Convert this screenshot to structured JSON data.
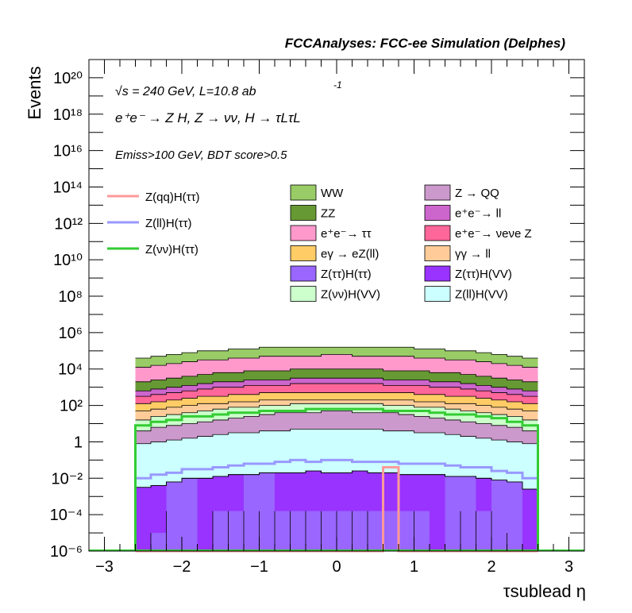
{
  "header": {
    "title": "FCCAnalyses: FCC-ee Simulation (Delphes)"
  },
  "annotations": {
    "sqrt_s": "s = 240 GeV, L=10.8 ab",
    "lumi_exp": "-1",
    "process": "e⁺e⁻ → Z H, Z → νν, H → τLτL",
    "cuts": "Emiss>100 GeV, BDT score>0.5"
  },
  "chart_data": {
    "type": "area",
    "xlabel": "τsublead η",
    "ylabel": "Events",
    "xlim": [
      -3.2,
      3.2
    ],
    "ylim_exponents": [
      -6,
      21
    ],
    "y_scale": "log",
    "x_ticks": [
      "−3",
      "−2",
      "−1",
      "0",
      "1",
      "2",
      "3"
    ],
    "y_ticks": [
      "10⁻⁶",
      "10⁻⁴",
      "10⁻²",
      "1",
      "10²",
      "10⁴",
      "10⁶",
      "10⁸",
      "10¹⁰",
      "10¹²",
      "10¹⁴",
      "10¹⁶",
      "10¹⁸",
      "10²⁰"
    ],
    "bin_edges": [
      -2.6,
      -2.4,
      -2.2,
      -2.0,
      -1.8,
      -1.6,
      -1.4,
      -1.2,
      -1.0,
      -0.8,
      -0.6,
      -0.4,
      -0.2,
      0.0,
      0.2,
      0.4,
      0.6,
      0.8,
      1.0,
      1.2,
      1.4,
      1.6,
      1.8,
      2.0,
      2.2,
      2.4,
      2.6
    ],
    "stack_order": [
      "Z(ττ)H(VV)",
      "Z(ττ)H(ττ)",
      "Z(ll)H(VV)",
      "Z → QQ",
      "Z(νν)H(VV)",
      "γγ → ll",
      "eγ → eZ(ll)",
      "e⁺e⁻→ νeνe Z",
      "e⁺e⁻→ ll",
      "ZZ",
      "e⁺e⁻→ ττ",
      "WW"
    ],
    "stack_totals_log10": {
      "Z(ττ)H(VV)": [
        -2.5,
        -2.4,
        -2.2,
        -2.0,
        -2.0,
        -1.9,
        -1.8,
        -1.8,
        -1.7,
        -1.7,
        -1.7,
        -1.6,
        -1.7,
        -1.7,
        -1.6,
        -1.7,
        -1.7,
        -1.8,
        -1.8,
        -1.8,
        -1.9,
        -1.9,
        -2.0,
        -2.1,
        -2.2,
        -2.6
      ],
      "Z(ττ)H(ττ)": [
        -2.5,
        -2.4,
        -2.2,
        -2.0,
        -2.0,
        -1.9,
        -1.8,
        -1.8,
        -1.7,
        -1.7,
        -1.7,
        -1.6,
        -1.7,
        -1.7,
        -1.6,
        -1.7,
        -1.7,
        -1.8,
        -1.8,
        -1.8,
        -1.9,
        -1.9,
        -2.0,
        -2.1,
        -2.2,
        -2.6
      ],
      "Z(ll)H(VV)": [
        -0.1,
        0.0,
        0.1,
        0.2,
        0.3,
        0.4,
        0.5,
        0.5,
        0.6,
        0.6,
        0.7,
        0.7,
        0.7,
        0.7,
        0.7,
        0.7,
        0.6,
        0.6,
        0.5,
        0.5,
        0.4,
        0.3,
        0.2,
        0.1,
        0.0,
        -0.1
      ],
      "Z → QQ": [
        0.6,
        0.8,
        0.9,
        1.0,
        1.1,
        1.2,
        1.3,
        1.4,
        1.5,
        1.6,
        1.6,
        1.6,
        1.7,
        1.7,
        1.6,
        1.6,
        1.6,
        1.5,
        1.4,
        1.3,
        1.2,
        1.1,
        1.0,
        0.9,
        0.8,
        0.6
      ],
      "Z(νν)H(VV)": [
        1.2,
        1.4,
        1.5,
        1.6,
        1.7,
        1.8,
        1.9,
        1.9,
        2.0,
        2.0,
        2.1,
        2.1,
        2.1,
        2.1,
        2.1,
        2.1,
        2.0,
        2.0,
        1.9,
        1.9,
        1.8,
        1.7,
        1.6,
        1.5,
        1.4,
        1.2
      ],
      "γγ → ll": [
        1.7,
        1.8,
        1.9,
        2.0,
        2.1,
        2.1,
        2.2,
        2.2,
        2.3,
        2.3,
        2.3,
        2.3,
        2.3,
        2.3,
        2.3,
        2.3,
        2.3,
        2.3,
        2.2,
        2.2,
        2.1,
        2.1,
        2.0,
        1.9,
        1.8,
        1.7
      ],
      "eγ → eZ(ll)": [
        2.1,
        2.2,
        2.3,
        2.4,
        2.5,
        2.5,
        2.6,
        2.6,
        2.7,
        2.7,
        2.7,
        2.7,
        2.7,
        2.7,
        2.7,
        2.7,
        2.7,
        2.7,
        2.6,
        2.6,
        2.5,
        2.5,
        2.4,
        2.3,
        2.2,
        2.1
      ],
      "e⁺e⁻→ νeνe Z": [
        2.5,
        2.6,
        2.7,
        2.8,
        2.9,
        3.0,
        3.0,
        3.1,
        3.1,
        3.1,
        3.2,
        3.2,
        3.2,
        3.2,
        3.2,
        3.2,
        3.1,
        3.1,
        3.1,
        3.0,
        3.0,
        2.9,
        2.8,
        2.7,
        2.6,
        2.5
      ],
      "e⁺e⁻→ ll": [
        2.8,
        2.9,
        3.0,
        3.1,
        3.2,
        3.3,
        3.3,
        3.4,
        3.4,
        3.4,
        3.5,
        3.5,
        3.5,
        3.5,
        3.5,
        3.5,
        3.4,
        3.4,
        3.4,
        3.3,
        3.3,
        3.2,
        3.1,
        3.0,
        2.9,
        2.8
      ],
      "ZZ": [
        3.3,
        3.4,
        3.5,
        3.6,
        3.7,
        3.8,
        3.8,
        3.9,
        3.9,
        3.9,
        4.0,
        4.0,
        4.0,
        4.0,
        4.0,
        4.0,
        3.9,
        3.9,
        3.9,
        3.8,
        3.8,
        3.7,
        3.6,
        3.5,
        3.4,
        3.3
      ],
      "e⁺e⁻→ ττ": [
        4.1,
        4.2,
        4.3,
        4.4,
        4.5,
        4.5,
        4.6,
        4.6,
        4.7,
        4.7,
        4.7,
        4.7,
        4.8,
        4.8,
        4.7,
        4.7,
        4.7,
        4.7,
        4.6,
        4.6,
        4.5,
        4.5,
        4.4,
        4.3,
        4.2,
        4.1
      ],
      "WW": [
        4.6,
        4.7,
        4.8,
        4.9,
        5.0,
        5.0,
        5.1,
        5.1,
        5.2,
        5.2,
        5.2,
        5.2,
        5.2,
        5.2,
        5.2,
        5.2,
        5.2,
        5.2,
        5.1,
        5.1,
        5.0,
        5.0,
        4.9,
        4.8,
        4.7,
        4.6
      ]
    },
    "ztautau_hvv_gaps": [
      2,
      3,
      7,
      8,
      20,
      21,
      23,
      24
    ],
    "ztautau_htautau_dips_log10": {
      "4": -5.8,
      "5": -5.8,
      "19": -5.8,
      "20": -5.8,
      "21": -5.8,
      "23": -5.8
    },
    "ztautau_htautau_values_log10": [
      -6.0,
      -5.0,
      -3.8,
      -6.0,
      -6.0,
      -3.8,
      -3.8,
      -3.8,
      -3.8,
      -3.8,
      -3.8,
      -3.8,
      -3.8,
      -3.8,
      -3.8,
      -3.8,
      -3.8,
      -3.8,
      -3.8,
      -6.0,
      -6.0,
      -3.8,
      -3.8,
      -3.8,
      -5.0,
      -6.0
    ],
    "line_series": [
      {
        "name": "Z(qq)H(ττ)",
        "color": "#ff9999",
        "values_log10": [
          -6.3,
          -6.3,
          -6.3,
          -6.3,
          -6.3,
          -6.3,
          -6.3,
          -6.3,
          -6.3,
          -6.3,
          -6.3,
          -6.3,
          -6.3,
          -6.3,
          -6.3,
          -6.3,
          -1.4,
          -6.3,
          -6.3,
          -6.3,
          -6.3,
          -6.3,
          -6.3,
          -6.3,
          -6.3,
          -6.3
        ]
      },
      {
        "name": "Z(ll)H(ττ)",
        "color": "#9999ff",
        "values_log10": [
          -2.0,
          -1.8,
          -1.7,
          -1.5,
          -1.5,
          -1.4,
          -1.3,
          -1.2,
          -1.2,
          -1.1,
          -1.0,
          -1.1,
          -1.0,
          -1.0,
          -1.1,
          -1.1,
          -1.1,
          -1.2,
          -1.2,
          -1.2,
          -1.3,
          -1.4,
          -1.4,
          -1.6,
          -1.7,
          -2.0
        ]
      },
      {
        "name": "Z(νν)H(ττ)",
        "color": "#33cc33",
        "values_log10": [
          0.9,
          1.1,
          1.2,
          1.4,
          1.4,
          1.5,
          1.6,
          1.6,
          1.7,
          1.7,
          1.7,
          1.8,
          1.8,
          1.8,
          1.8,
          1.8,
          1.7,
          1.7,
          1.7,
          1.6,
          1.5,
          1.5,
          1.4,
          1.3,
          1.1,
          0.9
        ]
      }
    ],
    "legend_lines": [
      "Z(qq)H(ττ)",
      "Z(ll)H(ττ)",
      "Z(νν)H(ττ)"
    ],
    "legend_fills_col1": [
      "WW",
      "ZZ",
      "e⁺e⁻→ ττ",
      "eγ → eZ(ll)",
      "Z(ττ)H(ττ)",
      "Z(νν)H(VV)"
    ],
    "legend_fills_col2": [
      "Z → QQ",
      "e⁺e⁻→ ll",
      "e⁺e⁻→ νeνe Z",
      "γγ → ll",
      "Z(ττ)H(VV)",
      "Z(ll)H(VV)"
    ],
    "colors": {
      "WW": "#99cc66",
      "ZZ": "#669933",
      "e⁺e⁻→ ττ": "#ff99cc",
      "eγ → eZ(ll)": "#ffcc66",
      "Z(ττ)H(ττ)": "#9966ff",
      "Z(νν)H(VV)": "#ccffcc",
      "Z → QQ": "#cc99cc",
      "e⁺e⁻→ ll": "#cc66cc",
      "e⁺e⁻→ νeνe Z": "#ff6699",
      "γγ → ll": "#ffcc99",
      "Z(ττ)H(VV)": "#9933ff",
      "Z(ll)H(VV)": "#ccffff"
    },
    "legend_placement": "top-right",
    "grid": false
  }
}
